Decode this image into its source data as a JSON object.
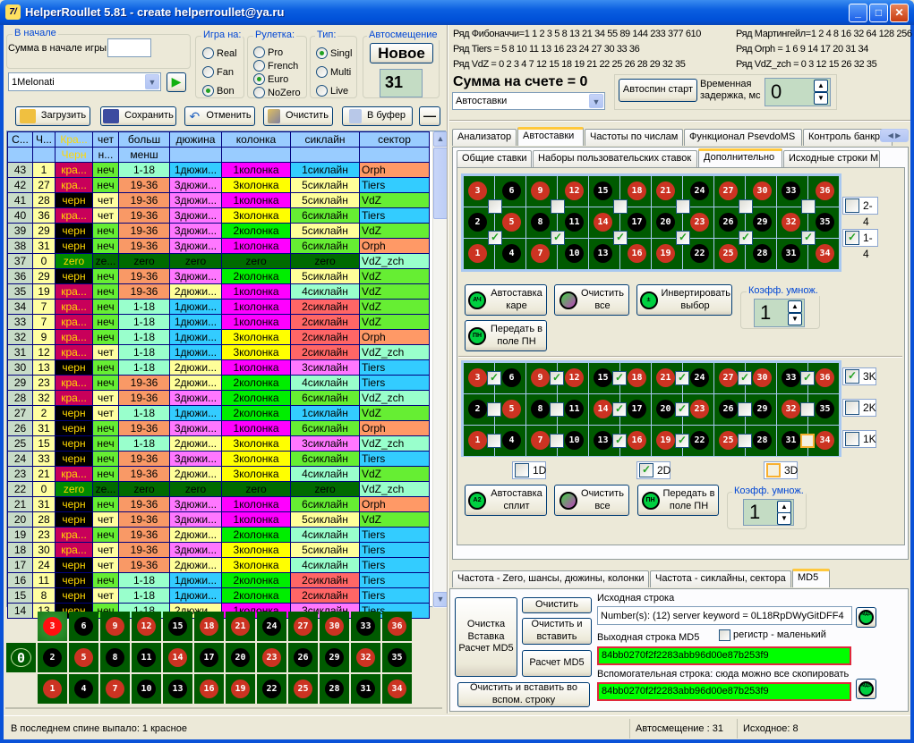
{
  "title": "HelperRoullet 5.81 - create helperroullet@ya.ru",
  "app_icon_text": "7/",
  "left": {
    "start_group": {
      "legend": "В начале",
      "sum_label": "Сумма в начале игры",
      "sum_value": ""
    },
    "profile_combo": "1Melonati",
    "game_on": {
      "legend": "Игра на:",
      "options": [
        "Real",
        "Fan",
        "Bon"
      ],
      "selected": "Bon"
    },
    "roulette": {
      "legend": "Рулетка:",
      "options": [
        "Pro",
        "French",
        "Euro",
        "NoZero"
      ],
      "selected": "Euro"
    },
    "type": {
      "legend": "Тип:",
      "options": [
        "Singl",
        "Multi",
        "Live"
      ],
      "selected": "Singl"
    },
    "autoshift": {
      "legend": "Автосмещение",
      "new_button": "Новое",
      "value": "31"
    },
    "toolbar": {
      "load": "Загрузить",
      "save": "Сохранить",
      "undo": "Отменить",
      "clear": "Очистить",
      "copy": "В буфер",
      "minus": "—"
    },
    "table": {
      "headers": [
        [
          "С...",
          ""
        ],
        [
          "Ч...",
          ""
        ],
        [
          "Кра...",
          "Черн"
        ],
        [
          "чет",
          "н..."
        ],
        [
          "больш",
          "менш"
        ],
        [
          "дюжина",
          ""
        ],
        [
          "колонка",
          ""
        ],
        [
          "сиклайн",
          ""
        ],
        [
          "сектор",
          ""
        ]
      ],
      "rows": [
        [
          "43",
          "1",
          "кра...",
          "неч",
          "1-18",
          "1дюжи...",
          "1колонка",
          "1сиклайн",
          "Orph"
        ],
        [
          "42",
          "27",
          "кра...",
          "неч",
          "19-36",
          "3дюжи...",
          "3колонка",
          "5сиклайн",
          "Tiers"
        ],
        [
          "41",
          "28",
          "черн",
          "чет",
          "19-36",
          "3дюжи...",
          "1колонка",
          "5сиклайн",
          "VdZ"
        ],
        [
          "40",
          "36",
          "кра...",
          "чет",
          "19-36",
          "3дюжи...",
          "3колонка",
          "6сиклайн",
          "Tiers"
        ],
        [
          "39",
          "29",
          "черн",
          "неч",
          "19-36",
          "3дюжи...",
          "2колонка",
          "5сиклайн",
          "VdZ"
        ],
        [
          "38",
          "31",
          "черн",
          "неч",
          "19-36",
          "3дюжи...",
          "1колонка",
          "6сиклайн",
          "Orph"
        ],
        [
          "37",
          "0",
          "zero",
          "ze...",
          "zero",
          "zero",
          "zero",
          "zero",
          "VdZ_zch"
        ],
        [
          "36",
          "29",
          "черн",
          "неч",
          "19-36",
          "3дюжи...",
          "2колонка",
          "5сиклайн",
          "VdZ"
        ],
        [
          "35",
          "19",
          "кра...",
          "неч",
          "19-36",
          "2дюжи...",
          "1колонка",
          "4сиклайн",
          "VdZ"
        ],
        [
          "34",
          "7",
          "кра...",
          "неч",
          "1-18",
          "1дюжи...",
          "1колонка",
          "2сиклайн",
          "VdZ"
        ],
        [
          "33",
          "7",
          "кра...",
          "неч",
          "1-18",
          "1дюжи...",
          "1колонка",
          "2сиклайн",
          "VdZ"
        ],
        [
          "32",
          "9",
          "кра...",
          "неч",
          "1-18",
          "1дюжи...",
          "3колонка",
          "2сиклайн",
          "Orph"
        ],
        [
          "31",
          "12",
          "кра...",
          "чет",
          "1-18",
          "1дюжи...",
          "3колонка",
          "2сиклайн",
          "VdZ_zch"
        ],
        [
          "30",
          "13",
          "черн",
          "неч",
          "1-18",
          "2дюжи...",
          "1колонка",
          "3сиклайн",
          "Tiers"
        ],
        [
          "29",
          "23",
          "кра...",
          "неч",
          "19-36",
          "2дюжи...",
          "2колонка",
          "4сиклайн",
          "Tiers"
        ],
        [
          "28",
          "32",
          "кра...",
          "чет",
          "19-36",
          "3дюжи...",
          "2колонка",
          "6сиклайн",
          "VdZ_zch"
        ],
        [
          "27",
          "2",
          "черн",
          "чет",
          "1-18",
          "1дюжи...",
          "2колонка",
          "1сиклайн",
          "VdZ"
        ],
        [
          "26",
          "31",
          "черн",
          "неч",
          "19-36",
          "3дюжи...",
          "1колонка",
          "6сиклайн",
          "Orph"
        ],
        [
          "25",
          "15",
          "черн",
          "неч",
          "1-18",
          "2дюжи...",
          "3колонка",
          "3сиклайн",
          "VdZ_zch"
        ],
        [
          "24",
          "33",
          "черн",
          "неч",
          "19-36",
          "3дюжи...",
          "3колонка",
          "6сиклайн",
          "Tiers"
        ],
        [
          "23",
          "21",
          "кра...",
          "неч",
          "19-36",
          "2дюжи...",
          "3колонка",
          "4сиклайн",
          "VdZ"
        ],
        [
          "22",
          "0",
          "zero",
          "ze...",
          "zero",
          "zero",
          "zero",
          "zero",
          "VdZ_zch"
        ],
        [
          "21",
          "31",
          "черн",
          "неч",
          "19-36",
          "3дюжи...",
          "1колонка",
          "6сиклайн",
          "Orph"
        ],
        [
          "20",
          "28",
          "черн",
          "чет",
          "19-36",
          "3дюжи...",
          "1колонка",
          "5сиклайн",
          "VdZ"
        ],
        [
          "19",
          "23",
          "кра...",
          "неч",
          "19-36",
          "2дюжи...",
          "2колонка",
          "4сиклайн",
          "Tiers"
        ],
        [
          "18",
          "30",
          "кра...",
          "чет",
          "19-36",
          "3дюжи...",
          "3колонка",
          "5сиклайн",
          "Tiers"
        ],
        [
          "17",
          "24",
          "черн",
          "чет",
          "19-36",
          "2дюжи...",
          "3колонка",
          "4сиклайн",
          "Tiers"
        ],
        [
          "16",
          "11",
          "черн",
          "неч",
          "1-18",
          "1дюжи...",
          "2колонка",
          "2сиклайн",
          "Tiers"
        ],
        [
          "15",
          "8",
          "черн",
          "чет",
          "1-18",
          "1дюжи...",
          "2колонка",
          "2сиклайн",
          "Tiers"
        ],
        [
          "14",
          "13",
          "черн",
          "неч",
          "1-18",
          "2дюжи...",
          "1колонка",
          "3сиклайн",
          "Tiers"
        ]
      ]
    },
    "board": {
      "zero": "0",
      "rows": [
        [
          3,
          6,
          9,
          12,
          15,
          18,
          21,
          24,
          27,
          30,
          33,
          36
        ],
        [
          2,
          5,
          8,
          11,
          14,
          17,
          20,
          23,
          26,
          29,
          32,
          35
        ],
        [
          1,
          4,
          7,
          10,
          13,
          16,
          19,
          22,
          25,
          28,
          31,
          34
        ]
      ],
      "red_numbers": [
        1,
        3,
        5,
        7,
        9,
        12,
        14,
        16,
        18,
        19,
        21,
        23,
        25,
        27,
        30,
        32,
        34,
        36
      ],
      "highlighted": 3
    }
  },
  "right": {
    "series": {
      "fib": "Ряд Фибоначчи=1 1 2 3 5 8 13 21 34 55 89 144 233 377 610",
      "tiers": "Ряд Tiers = 5 8 10 11 13 16 23 24 27 30 33 36",
      "vdz": "Ряд VdZ = 0 2 3 4 7 12 15 18 19 21 22 25 26 28 29 32 35",
      "martingale": "Ряд Мартингейл=1 2 4 8 16 32 64 128 256",
      "orph": "Ряд Orph = 1 6 9 14 17 20 31 34",
      "vdz_zch": "Ряд VdZ_zch = 0 3 12 15 26 32 35"
    },
    "balance": "Сумма на счете = 0",
    "mode_combo": "Автоставки",
    "autospin_button": "Автоспин старт",
    "delay_label": "Временная задержка, мс",
    "delay_value": "0",
    "main_tabs": [
      "Анализатор",
      "Автоставки",
      "Частоты по числам",
      "Функционал PsevdoMS",
      "Контроль банкро"
    ],
    "main_tab_active": "Автоставки",
    "sub_tabs": [
      "Общие ставки",
      "Наборы пользовательских ставок",
      "Дополнительно",
      "Исходные строки М"
    ],
    "sub_tab_active": "Дополнительно",
    "corner": {
      "top_checks": [
        false,
        false,
        false,
        false,
        false,
        false
      ],
      "bottom_checks": [
        true,
        true,
        true,
        true,
        true,
        true
      ],
      "side": [
        {
          "label": "2-4",
          "checked": false
        },
        {
          "label": "1-4",
          "checked": true
        }
      ],
      "autobet": "Автоставка каре",
      "autobet_icon": "АЧ",
      "clear_all": "Очистить все",
      "invert": "Инвертировать выбор",
      "transfer": "Передать в поле ПН",
      "transfer_icon": "ПН",
      "coef_legend": "Коэфф. умнож.",
      "coef_value": "1"
    },
    "split": {
      "checks": [
        [
          true,
          true,
          true,
          true,
          true,
          true
        ],
        [
          false,
          false,
          true,
          true,
          false,
          false
        ],
        [
          false,
          false,
          true,
          true,
          false,
          "partial"
        ]
      ],
      "side": [
        {
          "label": "3K",
          "checked": true
        },
        {
          "label": "2K",
          "checked": false
        },
        {
          "label": "1K",
          "checked": false
        }
      ],
      "dozens": [
        {
          "label": "1D",
          "checked": false
        },
        {
          "label": "2D",
          "checked": true
        },
        {
          "label": "3D",
          "checked": "partial"
        }
      ],
      "autobet": "Автоставка сплит",
      "autobet_icon": "А2",
      "clear_all": "Очистить все",
      "transfer": "Передать в поле ПН",
      "transfer_icon": "ПН",
      "coef_legend": "Коэфф. умнож.",
      "coef_value": "1"
    },
    "bottom_tabs": [
      "Частота - Zero, шансы, дюжины, колонки",
      "Частота - сиклайны, сектора",
      "MD5"
    ],
    "bottom_tab_active": "MD5",
    "md5": {
      "big_button": "Очистка Вставка Расчет MD5",
      "clear": "Очистить",
      "clear_paste": "Очистить и вставить",
      "calc": "Расчет MD5",
      "clear_paste_aux": "Очистить и вставить во вспом. строку",
      "source_label": "Исходная строка",
      "source_value": "Number(s): (12) server keyword = 0L18RpDWyGitDFF4",
      "output_label": "Выходная строка MD5",
      "lowercase_label": "регистр  - маленький",
      "lowercase_checked": false,
      "output_value": "84bb0270f2f2283abb96d00e87b253f9",
      "aux_label": "Вспомогательная строка: сюда можно все скопировать",
      "aux_value": "84bb0270f2f2283abb96d00e87b253f9",
      "md5_icon": "МД5"
    }
  },
  "status": {
    "last_spin": "В последнем спине выпало: 1 красное",
    "autoshift": "Автосмещение : 31",
    "source": "Исходное: 8"
  }
}
